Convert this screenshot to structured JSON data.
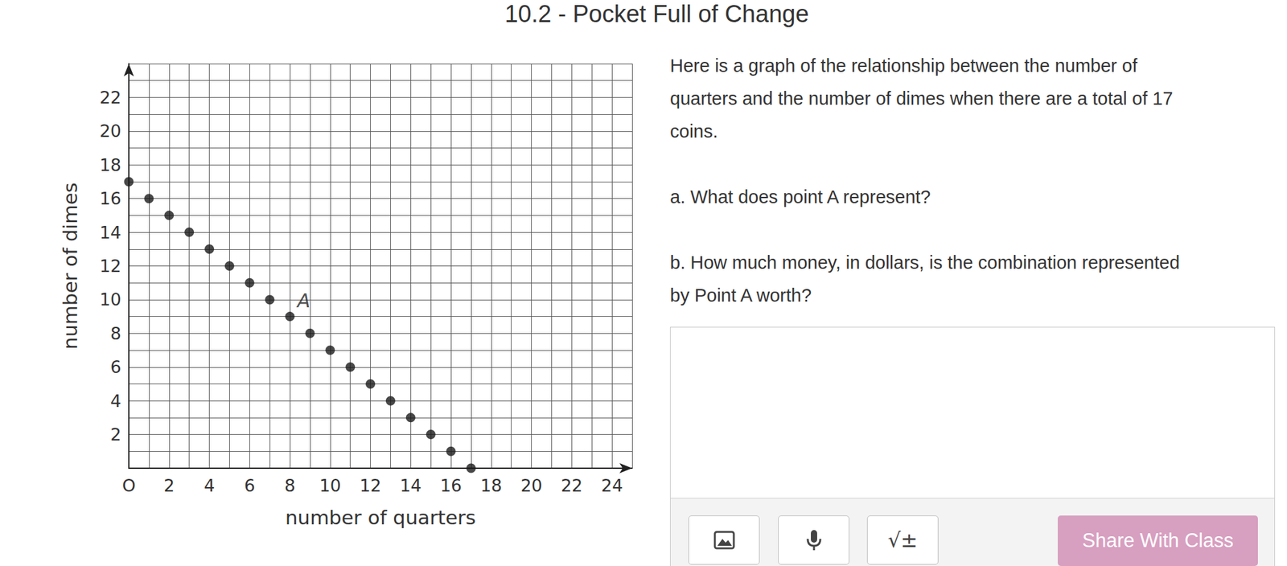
{
  "page": {
    "title": "10.2 - Pocket Full of Change",
    "prompt": [
      "Here is a graph of the relationship between the number of",
      "quarters and the number of dimes when there are a total of 17",
      "coins."
    ],
    "questions": [
      [
        "a. What does point A represent?"
      ],
      [
        "b. How much money, in dollars, is the combination represented",
        "by Point A worth?"
      ]
    ],
    "toolbar": {
      "math_button": "√±",
      "share_button": "Share With Class"
    }
  },
  "chart_data": {
    "type": "scatter",
    "x_label": "number of quarters",
    "y_label": "number of dimes",
    "x": [
      0,
      1,
      2,
      3,
      4,
      5,
      6,
      7,
      8,
      9,
      10,
      11,
      12,
      13,
      14,
      15,
      16,
      17
    ],
    "values": [
      17,
      16,
      15,
      14,
      13,
      12,
      11,
      10,
      9,
      8,
      7,
      6,
      5,
      4,
      3,
      2,
      1,
      0
    ],
    "color": "#1a1a1a",
    "marker": "circle",
    "xlim": [
      0,
      25
    ],
    "ylim": [
      0,
      24
    ],
    "xticks": [
      {
        "value": 0,
        "label": "O"
      },
      2,
      4,
      6,
      8,
      10,
      12,
      14,
      16,
      18,
      20,
      22,
      24
    ],
    "yticks": [
      2,
      4,
      6,
      8,
      10,
      12,
      14,
      16,
      18,
      20,
      22
    ],
    "grid": true,
    "annotations": [
      {
        "text": "A",
        "x": 8,
        "y": 9
      }
    ]
  }
}
